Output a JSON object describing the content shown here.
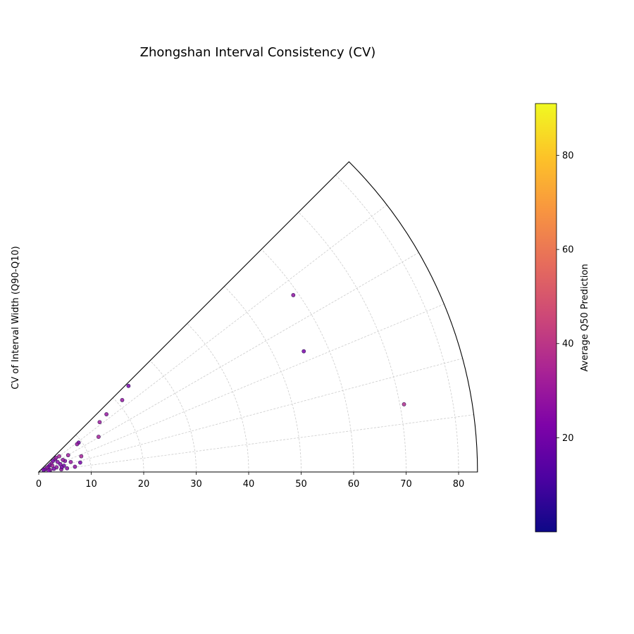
{
  "chart_data": {
    "type": "scatter",
    "projection": "polar-wedge",
    "title": "Zhongshan Interval Consistency (CV)",
    "ylabel": "CV of Interval Width (Q90-Q10)",
    "r_range": [
      0,
      83.6
    ],
    "theta_range_deg": [
      0,
      45
    ],
    "r_ticks": [
      0,
      10,
      20,
      30,
      40,
      50,
      60,
      70,
      80
    ],
    "grid": true,
    "colorbar": {
      "label": "Average Q50 Prediction",
      "range": [
        0,
        91
      ],
      "ticks": [
        20,
        40,
        60,
        80
      ],
      "colormap": "plasma"
    },
    "points": [
      {
        "x": 69.6,
        "y": 12.9,
        "c": 38
      },
      {
        "x": 48.5,
        "y": 33.7,
        "c": 28
      },
      {
        "x": 50.5,
        "y": 23.0,
        "c": 22
      },
      {
        "x": 17.1,
        "y": 16.4,
        "c": 22
      },
      {
        "x": 15.9,
        "y": 13.7,
        "c": 30
      },
      {
        "x": 12.9,
        "y": 11.0,
        "c": 30
      },
      {
        "x": 11.6,
        "y": 9.5,
        "c": 32
      },
      {
        "x": 11.4,
        "y": 6.7,
        "c": 34
      },
      {
        "x": 7.6,
        "y": 5.6,
        "c": 22
      },
      {
        "x": 7.3,
        "y": 5.3,
        "c": 30
      },
      {
        "x": 8.1,
        "y": 3.0,
        "c": 34
      },
      {
        "x": 7.9,
        "y": 1.8,
        "c": 22
      },
      {
        "x": 6.9,
        "y": 1.0,
        "c": 28
      },
      {
        "x": 5.6,
        "y": 3.2,
        "c": 32
      },
      {
        "x": 6.1,
        "y": 1.9,
        "c": 30
      },
      {
        "x": 5.0,
        "y": 2.1,
        "c": 26
      },
      {
        "x": 4.6,
        "y": 2.3,
        "c": 30
      },
      {
        "x": 4.1,
        "y": 1.5,
        "c": 24
      },
      {
        "x": 4.8,
        "y": 1.2,
        "c": 22
      },
      {
        "x": 5.4,
        "y": 0.7,
        "c": 26
      },
      {
        "x": 4.3,
        "y": 0.5,
        "c": 30
      },
      {
        "x": 3.9,
        "y": 3.0,
        "c": 34
      },
      {
        "x": 3.1,
        "y": 2.4,
        "c": 28
      },
      {
        "x": 2.7,
        "y": 2.1,
        "c": 22
      },
      {
        "x": 2.4,
        "y": 1.6,
        "c": 30
      },
      {
        "x": 2.1,
        "y": 1.3,
        "c": 26
      },
      {
        "x": 1.8,
        "y": 1.0,
        "c": 22
      },
      {
        "x": 1.5,
        "y": 0.8,
        "c": 30
      },
      {
        "x": 1.2,
        "y": 0.5,
        "c": 24
      },
      {
        "x": 3.4,
        "y": 0.9,
        "c": 28
      },
      {
        "x": 2.9,
        "y": 0.6,
        "c": 22
      },
      {
        "x": 2.6,
        "y": 1.2,
        "c": 32
      },
      {
        "x": 3.6,
        "y": 1.9,
        "c": 26
      },
      {
        "x": 2.2,
        "y": 0.4,
        "c": 30
      },
      {
        "x": 1.9,
        "y": 0.3,
        "c": 24
      },
      {
        "x": 0.9,
        "y": 0.4,
        "c": 22
      },
      {
        "x": 3.3,
        "y": 2.7,
        "c": 30
      },
      {
        "x": 4.4,
        "y": 0.9,
        "c": 22
      }
    ]
  }
}
